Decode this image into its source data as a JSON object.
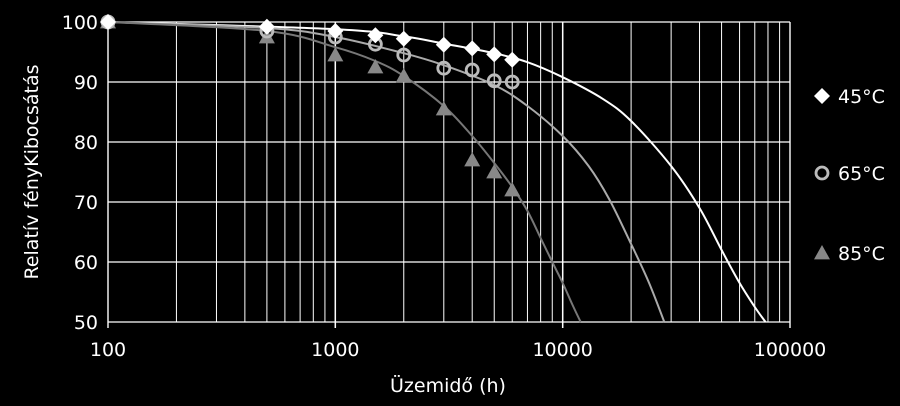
{
  "chart_data": {
    "type": "scatter",
    "title": "",
    "xlabel": "Üzemidő (h)",
    "ylabel": "Relatív fényKibocsátás",
    "x_scale": "log",
    "xlim": [
      100,
      100000
    ],
    "ylim": [
      50,
      100
    ],
    "x_ticks": [
      "100",
      "1000",
      "10000",
      "100000"
    ],
    "y_ticks": [
      "50",
      "60",
      "70",
      "80",
      "90",
      "100"
    ],
    "grid": true,
    "legend_position": "right",
    "background": "#000000",
    "series": [
      {
        "name": "45°C",
        "marker": "diamond",
        "color": "#ffffff",
        "line_color": "#ffffff",
        "points": [
          [
            100,
            100
          ],
          [
            500,
            99.2
          ],
          [
            1000,
            98.5
          ],
          [
            1500,
            97.8
          ],
          [
            2000,
            97.2
          ],
          [
            3000,
            96.2
          ],
          [
            4000,
            95.6
          ],
          [
            5000,
            94.6
          ],
          [
            6000,
            93.7
          ]
        ],
        "fit_curve": [
          [
            100,
            100
          ],
          [
            1000,
            98.8
          ],
          [
            2000,
            97.6
          ],
          [
            3000,
            96.4
          ],
          [
            5000,
            94.8
          ],
          [
            7000,
            93.3
          ],
          [
            10000,
            90.8
          ],
          [
            15000,
            87.2
          ],
          [
            20000,
            83.5
          ],
          [
            30000,
            76.0
          ],
          [
            40000,
            69.0
          ],
          [
            50000,
            62.0
          ],
          [
            60000,
            56.5
          ],
          [
            70000,
            52.5
          ],
          [
            78000,
            50.0
          ]
        ]
      },
      {
        "name": "65°C",
        "marker": "circle",
        "color": "#bbbbbb",
        "line_color": "#aaaaaa",
        "points": [
          [
            100,
            100
          ],
          [
            500,
            98.5
          ],
          [
            1000,
            97.5
          ],
          [
            1500,
            96.3
          ],
          [
            2000,
            94.5
          ],
          [
            3000,
            92.3
          ],
          [
            4000,
            92.0
          ],
          [
            5000,
            90.2
          ],
          [
            6000,
            90.0
          ]
        ],
        "fit_curve": [
          [
            100,
            100
          ],
          [
            500,
            99.0
          ],
          [
            1000,
            97.5
          ],
          [
            2000,
            94.8
          ],
          [
            3000,
            92.8
          ],
          [
            5000,
            89.5
          ],
          [
            7000,
            86.0
          ],
          [
            10000,
            81.0
          ],
          [
            13000,
            76.0
          ],
          [
            16000,
            70.5
          ],
          [
            20000,
            63.0
          ],
          [
            24000,
            56.5
          ],
          [
            28000,
            50.0
          ]
        ]
      },
      {
        "name": "85°C",
        "marker": "triangle",
        "color": "#888888",
        "line_color": "#777777",
        "points": [
          [
            100,
            100
          ],
          [
            500,
            97.5
          ],
          [
            1000,
            94.5
          ],
          [
            1500,
            92.5
          ],
          [
            2000,
            91.0
          ],
          [
            3000,
            85.5
          ],
          [
            4000,
            77.0
          ],
          [
            5000,
            75.0
          ],
          [
            6000,
            72.0
          ]
        ],
        "fit_curve": [
          [
            100,
            100
          ],
          [
            500,
            98.5
          ],
          [
            1000,
            95.8
          ],
          [
            1500,
            93.5
          ],
          [
            2000,
            91.0
          ],
          [
            3000,
            86.0
          ],
          [
            4000,
            81.0
          ],
          [
            5000,
            76.5
          ],
          [
            6000,
            72.5
          ],
          [
            7000,
            68.5
          ],
          [
            8000,
            64.0
          ],
          [
            9000,
            60.0
          ],
          [
            10000,
            56.5
          ],
          [
            11000,
            53.0
          ],
          [
            12000,
            50.0
          ]
        ]
      }
    ]
  }
}
